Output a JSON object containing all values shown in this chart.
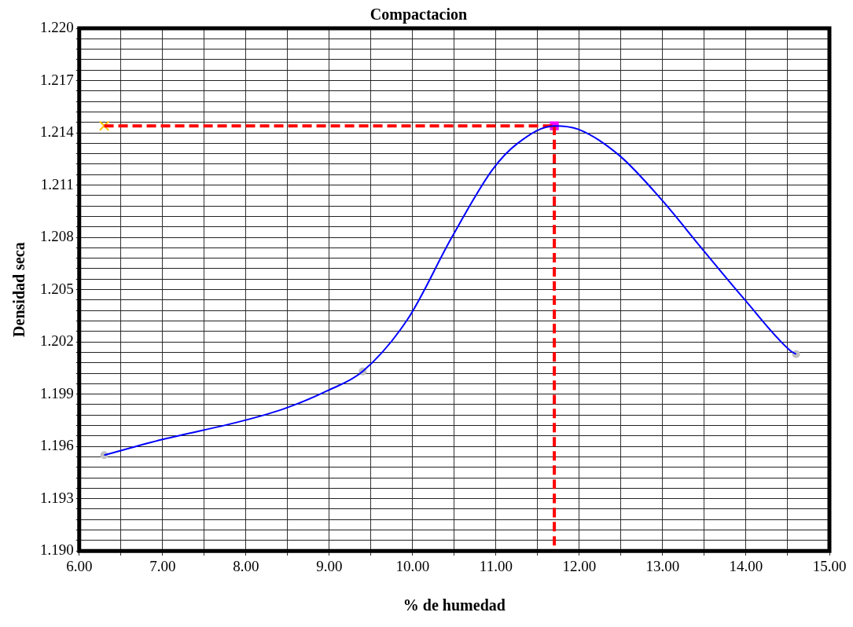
{
  "chart_data": {
    "type": "line",
    "title": "Compactacion",
    "xlabel": "% de humedad",
    "ylabel": "Densidad seca",
    "xlim": [
      6,
      15
    ],
    "xticks": [
      {
        "value": 6,
        "label": "6.00"
      },
      {
        "value": 6.5,
        "label": null
      },
      {
        "value": 7,
        "label": "7.00"
      },
      {
        "value": 7.5,
        "label": null
      },
      {
        "value": 8,
        "label": "8.00"
      },
      {
        "value": 8.5,
        "label": null
      },
      {
        "value": 9,
        "label": "9.00"
      },
      {
        "value": 9.5,
        "label": null
      },
      {
        "value": 10,
        "label": "10.00"
      },
      {
        "value": 10.5,
        "label": null
      },
      {
        "value": 11,
        "label": "11.00"
      },
      {
        "value": 11.5,
        "label": null
      },
      {
        "value": 12,
        "label": "12.00"
      },
      {
        "value": 12.5,
        "label": null
      },
      {
        "value": 13,
        "label": "13.00"
      },
      {
        "value": 13.5,
        "label": null
      },
      {
        "value": 14,
        "label": "14.00"
      },
      {
        "value": 14.5,
        "label": null
      },
      {
        "value": 15,
        "label": "15.00"
      }
    ],
    "ylim": [
      1.19,
      1.22
    ],
    "yticks": [
      {
        "value": 1.19,
        "label": "1.190"
      },
      {
        "value": 1.1906,
        "label": null
      },
      {
        "value": 1.1912,
        "label": null
      },
      {
        "value": 1.1918,
        "label": null
      },
      {
        "value": 1.1924,
        "label": null
      },
      {
        "value": 1.193,
        "label": "1.193"
      },
      {
        "value": 1.1936,
        "label": null
      },
      {
        "value": 1.1942,
        "label": null
      },
      {
        "value": 1.1948,
        "label": null
      },
      {
        "value": 1.1954,
        "label": null
      },
      {
        "value": 1.196,
        "label": "1.196"
      },
      {
        "value": 1.1966,
        "label": null
      },
      {
        "value": 1.1972,
        "label": null
      },
      {
        "value": 1.1978,
        "label": null
      },
      {
        "value": 1.1984,
        "label": null
      },
      {
        "value": 1.199,
        "label": "1.199"
      },
      {
        "value": 1.1996,
        "label": null
      },
      {
        "value": 1.2002,
        "label": null
      },
      {
        "value": 1.2008,
        "label": null
      },
      {
        "value": 1.2014,
        "label": null
      },
      {
        "value": 1.202,
        "label": "1.202"
      },
      {
        "value": 1.2026,
        "label": null
      },
      {
        "value": 1.2032,
        "label": null
      },
      {
        "value": 1.2038,
        "label": null
      },
      {
        "value": 1.2044,
        "label": null
      },
      {
        "value": 1.205,
        "label": "1.205"
      },
      {
        "value": 1.2056,
        "label": null
      },
      {
        "value": 1.2062,
        "label": null
      },
      {
        "value": 1.2068,
        "label": null
      },
      {
        "value": 1.2074,
        "label": null
      },
      {
        "value": 1.208,
        "label": "1.208"
      },
      {
        "value": 1.2086,
        "label": null
      },
      {
        "value": 1.2092,
        "label": null
      },
      {
        "value": 1.2098,
        "label": null
      },
      {
        "value": 1.2104,
        "label": null
      },
      {
        "value": 1.211,
        "label": "1.211"
      },
      {
        "value": 1.2116,
        "label": null
      },
      {
        "value": 1.2122,
        "label": null
      },
      {
        "value": 1.2128,
        "label": null
      },
      {
        "value": 1.2134,
        "label": null
      },
      {
        "value": 1.214,
        "label": "1.214"
      },
      {
        "value": 1.2146,
        "label": null
      },
      {
        "value": 1.2152,
        "label": null
      },
      {
        "value": 1.2158,
        "label": null
      },
      {
        "value": 1.2164,
        "label": null
      },
      {
        "value": 1.217,
        "label": "1.217"
      },
      {
        "value": 1.2176,
        "label": null
      },
      {
        "value": 1.2182,
        "label": null
      },
      {
        "value": 1.2188,
        "label": null
      },
      {
        "value": 1.2194,
        "label": null
      },
      {
        "value": 1.22,
        "label": "1.220"
      }
    ],
    "grid": true,
    "legend": false,
    "series": [
      {
        "type": "line",
        "color": "#0000ff",
        "marker": "none",
        "line_style": "solid",
        "x": [
          6.3,
          7.0,
          7.99,
          8.48,
          8.98,
          9.4,
          9.94,
          10.47,
          10.96,
          11.26,
          11.7,
          11.99,
          12.48,
          12.98,
          13.48,
          13.97,
          14.53,
          14.6
        ],
        "values": [
          1.1955,
          1.1964,
          1.1975,
          1.1982,
          1.1992,
          1.2003,
          1.2033,
          1.208,
          1.2119,
          1.2134,
          1.2144,
          1.2142,
          1.2127,
          1.2102,
          1.2073,
          1.2045,
          1.2015,
          1.2013
        ]
      },
      {
        "type": "line",
        "color": "#ff0000",
        "marker": "none",
        "line_style": "dashed",
        "x": [
          6.3,
          11.7
        ],
        "values": [
          1.2144,
          1.2144
        ]
      },
      {
        "type": "line",
        "color": "#ff0000",
        "marker": "none",
        "line_style": "dashed",
        "x": [
          11.7,
          11.7
        ],
        "values": [
          1.2144,
          1.19
        ]
      },
      {
        "type": "scatter",
        "color": "#c0c0c0",
        "marker": "circle",
        "x": [
          6.3,
          9.4,
          14.6
        ],
        "values": [
          1.1955,
          1.2003,
          1.2013
        ]
      },
      {
        "type": "scatter",
        "color": "#ff00ff",
        "marker": "square",
        "x": [
          11.7
        ],
        "values": [
          1.2144
        ]
      },
      {
        "type": "scatter",
        "color": "#ffc000",
        "marker": "cross",
        "x": [
          6.3
        ],
        "values": [
          1.2144
        ]
      }
    ]
  }
}
